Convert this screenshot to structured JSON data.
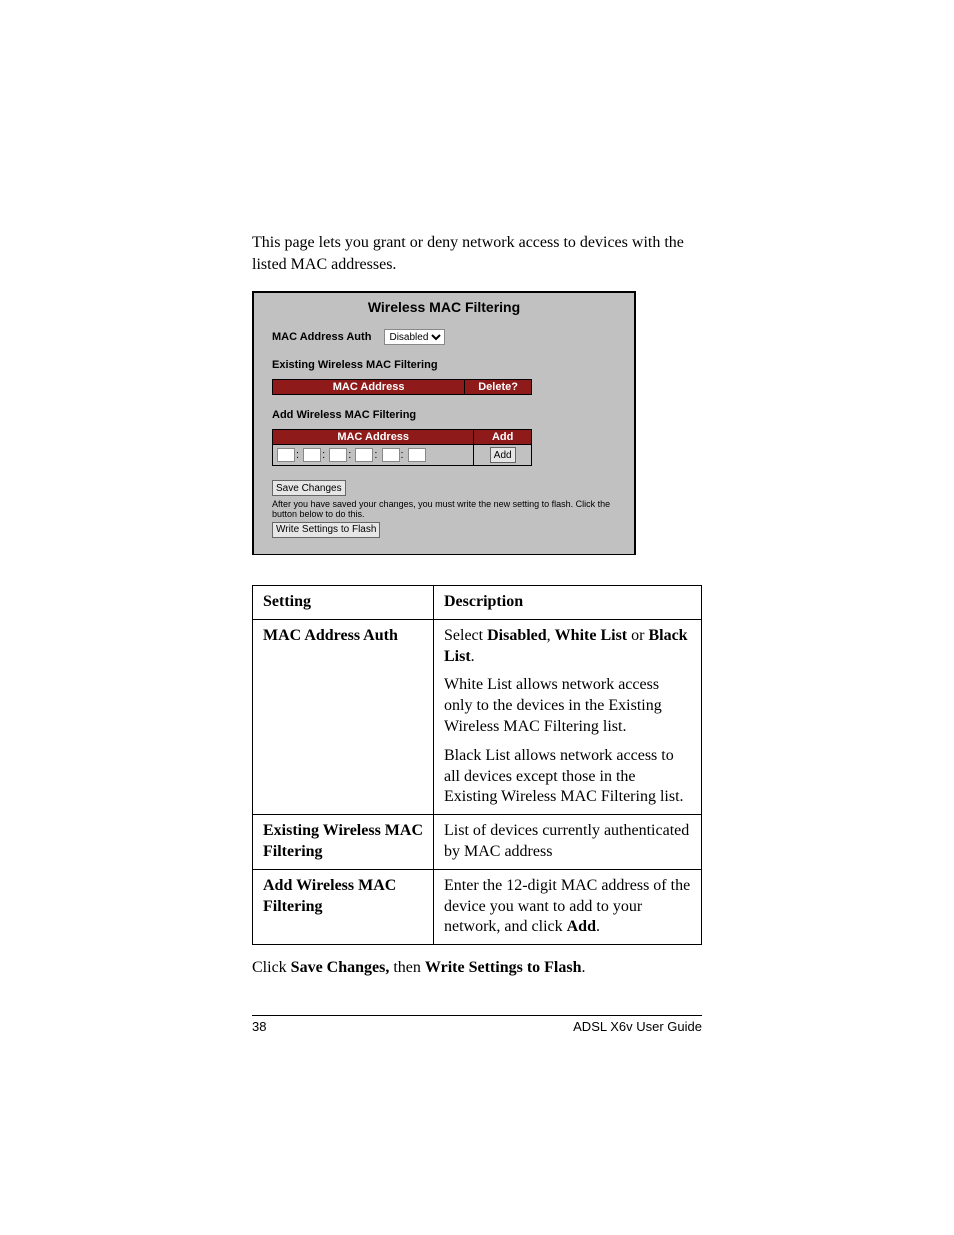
{
  "intro": "This page lets you grant or deny network access to devices with the listed MAC addresses.",
  "panel": {
    "title": "Wireless MAC Filtering",
    "auth_label": "MAC Address Auth",
    "auth_value": "Disabled",
    "existing_heading": "Existing Wireless MAC Filtering",
    "existing_cols": {
      "mac": "MAC Address",
      "delete": "Delete?"
    },
    "add_heading": "Add Wireless MAC Filtering",
    "add_cols": {
      "mac": "MAC Address",
      "add": "Add"
    },
    "add_button": "Add",
    "save_button": "Save Changes",
    "note": "After you have saved your changes, you must write the new setting to flash. Click the button below to do this.",
    "write_button": "Write Settings to Flash"
  },
  "desc": {
    "head_setting": "Setting",
    "head_description": "Description",
    "rows": [
      {
        "setting": "MAC Address Auth",
        "paras": [
          "Select <b>Disabled</b>, <b>White List</b> or <b>Black List</b>.",
          "White List allows network access only to the devices in the Existing Wireless MAC Filtering list.",
          "Black List allows network access to all devices except those in the Existing Wireless MAC Filtering list."
        ]
      },
      {
        "setting": "Existing Wireless MAC Filtering",
        "paras": [
          "List of devices currently authenticated by MAC address"
        ]
      },
      {
        "setting": "Add Wireless MAC Filtering",
        "paras": [
          "Enter the 12-digit MAC address of the device you want to add to your network, and click <b>Add</b>."
        ]
      }
    ]
  },
  "closing": "Click <b>Save Changes,</b> then <b>Write Settings to Flash</b>.",
  "footer": {
    "page": "38",
    "title": "ADSL X6v User Guide"
  },
  "colors": {
    "panel_bg": "#c1c1c1",
    "header_bg": "#8e1a1a",
    "header_fg": "#ffffff",
    "border": "#000000"
  }
}
